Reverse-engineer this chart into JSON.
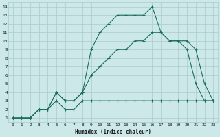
{
  "xlabel": "Humidex (Indice chaleur)",
  "bg_color": "#cce8e8",
  "grid_color": "#aacccc",
  "line_color": "#1a6e5a",
  "xlim": [
    -0.5,
    23.5
  ],
  "ylim": [
    0.5,
    14.5
  ],
  "xticks": [
    0,
    1,
    2,
    3,
    4,
    5,
    6,
    7,
    8,
    9,
    10,
    11,
    12,
    13,
    14,
    15,
    16,
    17,
    18,
    19,
    20,
    21,
    22,
    23
  ],
  "yticks": [
    1,
    2,
    3,
    4,
    5,
    6,
    7,
    8,
    9,
    10,
    11,
    12,
    13,
    14
  ],
  "lines": [
    {
      "x": [
        0,
        1,
        2,
        3,
        4,
        5,
        6,
        7,
        8,
        9,
        10,
        11,
        12,
        13,
        14,
        15,
        16,
        17,
        18,
        19,
        20,
        21,
        22,
        23
      ],
      "y": [
        1,
        1,
        1,
        2,
        2,
        4,
        3,
        3,
        4,
        9,
        11,
        12,
        13,
        13,
        13,
        13,
        14,
        11,
        10,
        10,
        9,
        5,
        3,
        3
      ]
    },
    {
      "x": [
        0,
        1,
        2,
        3,
        4,
        5,
        6,
        7,
        8,
        9,
        10,
        11,
        12,
        13,
        14,
        15,
        16,
        17,
        18,
        19,
        20,
        21,
        22,
        23
      ],
      "y": [
        1,
        1,
        1,
        2,
        2,
        4,
        3,
        3,
        4,
        6,
        7,
        8,
        9,
        9,
        10,
        10,
        11,
        11,
        10,
        10,
        10,
        9,
        5,
        3
      ]
    },
    {
      "x": [
        0,
        1,
        2,
        3,
        4,
        5,
        6,
        7,
        8,
        9,
        10,
        11,
        12,
        13,
        14,
        15,
        16,
        17,
        18,
        19,
        20,
        21,
        22,
        23
      ],
      "y": [
        1,
        1,
        1,
        2,
        2,
        3,
        2,
        2,
        3,
        3,
        3,
        3,
        3,
        3,
        3,
        3,
        3,
        3,
        3,
        3,
        3,
        3,
        3,
        3
      ]
    }
  ]
}
